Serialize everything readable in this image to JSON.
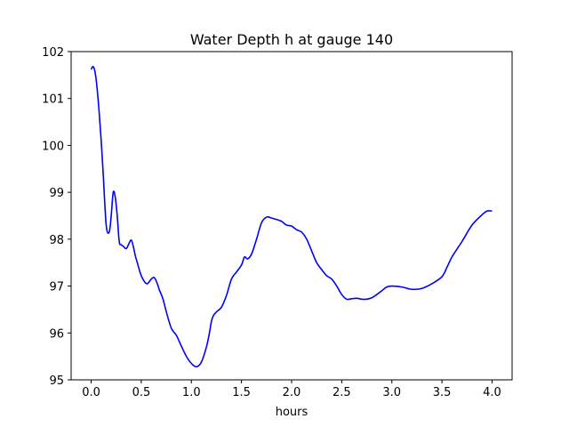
{
  "chart_data": {
    "type": "line",
    "title": "Water Depth h at gauge 140",
    "xlabel": "hours",
    "ylabel": "",
    "xlim": [
      -0.2,
      4.2
    ],
    "ylim": [
      95,
      102
    ],
    "xticks": [
      0.0,
      0.5,
      1.0,
      1.5,
      2.0,
      2.5,
      3.0,
      3.5,
      4.0
    ],
    "xtick_labels": [
      "0.0",
      "0.5",
      "1.0",
      "1.5",
      "2.0",
      "2.5",
      "3.0",
      "3.5",
      "4.0"
    ],
    "yticks": [
      95,
      96,
      97,
      98,
      99,
      100,
      101,
      102
    ],
    "ytick_labels": [
      "95",
      "96",
      "97",
      "98",
      "99",
      "100",
      "101",
      "102"
    ],
    "grid": false,
    "series": [
      {
        "color": "#0000ff",
        "x": [
          0.0,
          0.02,
          0.04,
          0.06,
          0.08,
          0.1,
          0.12,
          0.15,
          0.18,
          0.2,
          0.22,
          0.24,
          0.26,
          0.28,
          0.3,
          0.32,
          0.35,
          0.38,
          0.4,
          0.42,
          0.44,
          0.46,
          0.48,
          0.5,
          0.53,
          0.56,
          0.6,
          0.63,
          0.66,
          0.68,
          0.7,
          0.72,
          0.75,
          0.8,
          0.85,
          0.9,
          0.95,
          1.0,
          1.05,
          1.1,
          1.15,
          1.18,
          1.2,
          1.22,
          1.25,
          1.3,
          1.35,
          1.4,
          1.45,
          1.5,
          1.53,
          1.56,
          1.6,
          1.65,
          1.7,
          1.75,
          1.8,
          1.85,
          1.9,
          1.95,
          2.0,
          2.05,
          2.1,
          2.15,
          2.2,
          2.25,
          2.3,
          2.35,
          2.4,
          2.45,
          2.5,
          2.55,
          2.6,
          2.65,
          2.7,
          2.75,
          2.8,
          2.85,
          2.9,
          2.95,
          3.0,
          3.1,
          3.2,
          3.3,
          3.4,
          3.5,
          3.55,
          3.6,
          3.7,
          3.8,
          3.9,
          3.95,
          4.0
        ],
        "y": [
          101.62,
          101.68,
          101.55,
          101.2,
          100.7,
          100.1,
          99.4,
          98.3,
          98.15,
          98.5,
          99.0,
          98.9,
          98.5,
          97.95,
          97.88,
          97.85,
          97.8,
          97.92,
          97.98,
          97.85,
          97.65,
          97.5,
          97.35,
          97.22,
          97.1,
          97.05,
          97.15,
          97.18,
          97.05,
          96.92,
          96.82,
          96.7,
          96.45,
          96.1,
          95.95,
          95.72,
          95.5,
          95.35,
          95.28,
          95.38,
          95.7,
          96.0,
          96.25,
          96.37,
          96.45,
          96.55,
          96.8,
          97.15,
          97.3,
          97.45,
          97.62,
          97.58,
          97.68,
          98.0,
          98.35,
          98.47,
          98.45,
          98.42,
          98.38,
          98.3,
          98.28,
          98.2,
          98.15,
          98.0,
          97.75,
          97.5,
          97.35,
          97.22,
          97.15,
          97.0,
          96.82,
          96.72,
          96.73,
          96.74,
          96.72,
          96.72,
          96.75,
          96.82,
          96.9,
          96.98,
          97.0,
          96.98,
          96.93,
          96.95,
          97.05,
          97.2,
          97.4,
          97.62,
          97.95,
          98.3,
          98.52,
          98.6,
          98.6
        ]
      }
    ]
  }
}
